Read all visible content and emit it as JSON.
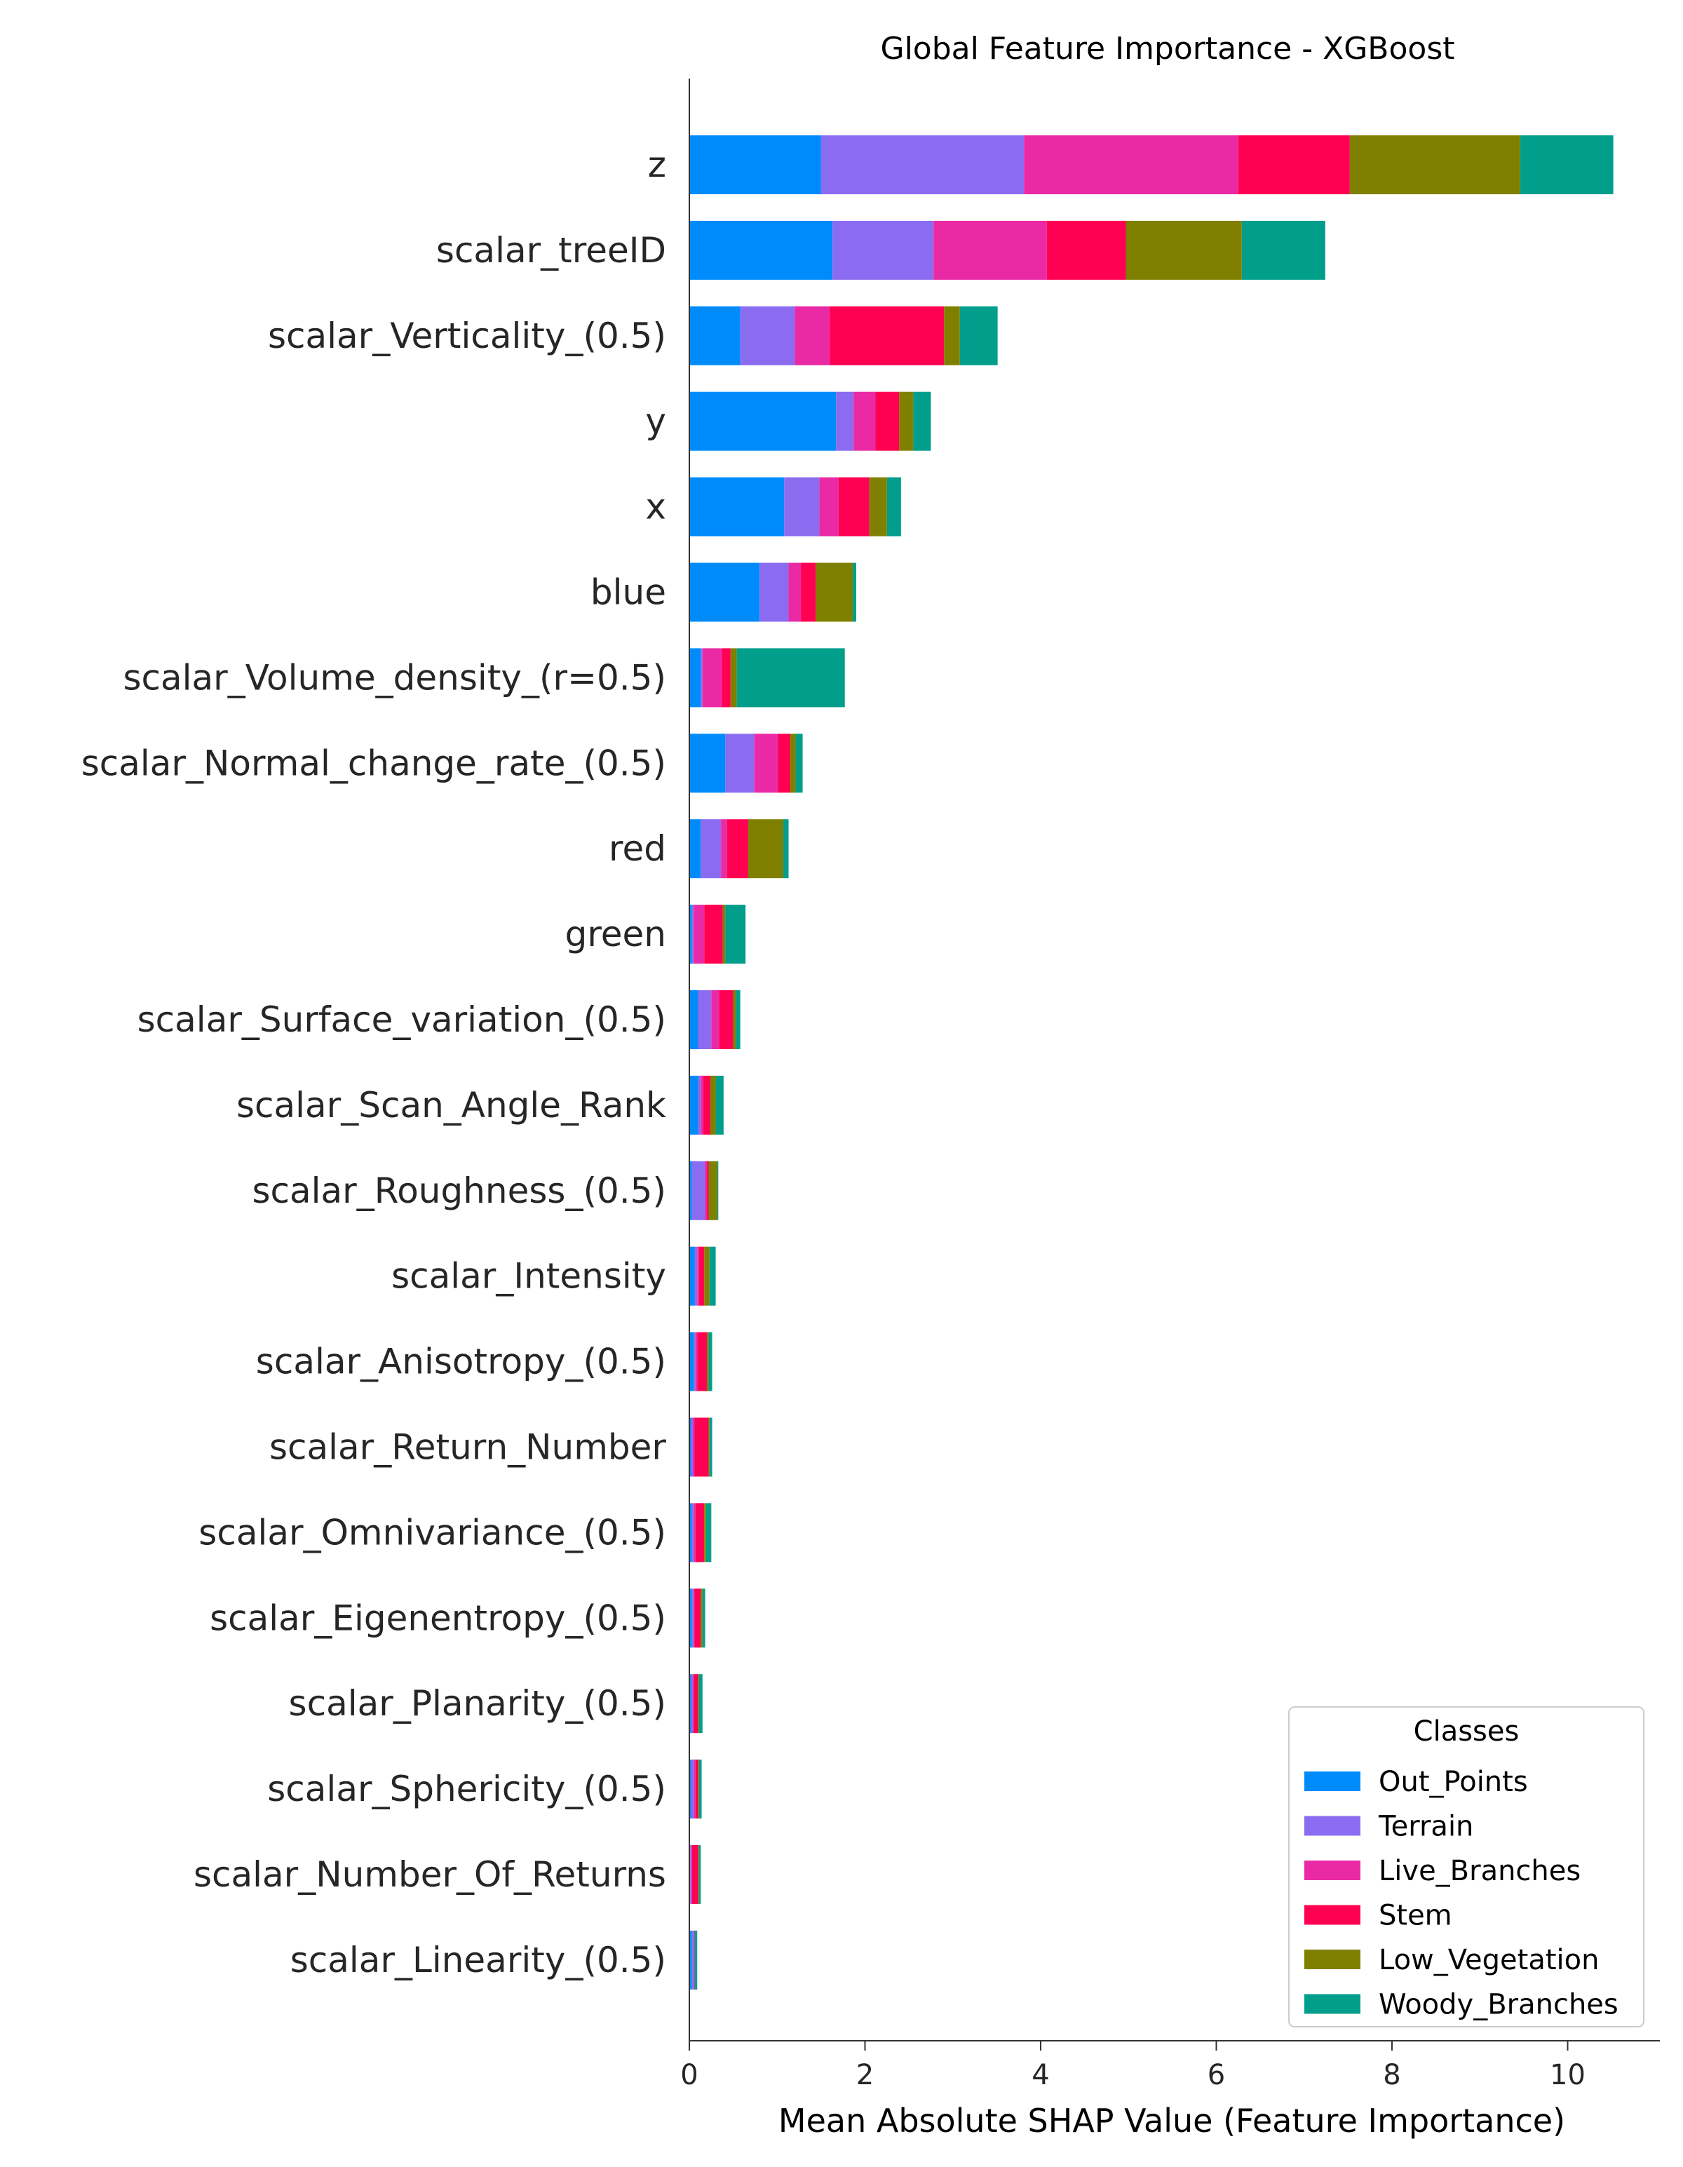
{
  "chart_data": {
    "type": "bar",
    "orientation": "horizontal",
    "stacked": true,
    "title": "Global Feature Importance - XGBoost",
    "xlabel": "Mean Absolute SHAP Value (Feature Importance)",
    "ylabel": "",
    "xlim": [
      0,
      11.05
    ],
    "xticks": [
      0,
      2,
      4,
      6,
      8,
      10
    ],
    "grid": false,
    "legend": {
      "title": "Classes",
      "position": "lower-right"
    },
    "categories": [
      "z",
      "scalar_treeID",
      "scalar_Verticality_(0.5)",
      "y",
      "x",
      "blue",
      "scalar_Volume_density_(r=0.5)",
      "scalar_Normal_change_rate_(0.5)",
      "red",
      "green",
      "scalar_Surface_variation_(0.5)",
      "scalar_Scan_Angle_Rank",
      "scalar_Roughness_(0.5)",
      "scalar_Intensity",
      "scalar_Anisotropy_(0.5)",
      "scalar_Return_Number",
      "scalar_Omnivariance_(0.5)",
      "scalar_Eigenentropy_(0.5)",
      "scalar_Planarity_(0.5)",
      "scalar_Sphericity_(0.5)",
      "scalar_Number_Of_Returns",
      "scalar_Linearity_(0.5)"
    ],
    "series": [
      {
        "name": "Out_Points",
        "color": "#008bfb",
        "values": [
          1.5,
          1.63,
          0.58,
          1.67,
          1.08,
          0.8,
          0.13,
          0.41,
          0.13,
          0.03,
          0.1,
          0.1,
          0.03,
          0.06,
          0.05,
          0.02,
          0.03,
          0.03,
          0.02,
          0.02,
          0.01,
          0.03
        ]
      },
      {
        "name": "Terrain",
        "color": "#8b6cf0",
        "values": [
          2.31,
          1.15,
          0.62,
          0.2,
          0.4,
          0.33,
          0.02,
          0.33,
          0.23,
          0.02,
          0.15,
          0.03,
          0.15,
          0.03,
          0.02,
          0.02,
          0.02,
          0.02,
          0.02,
          0.03,
          0.01,
          0.02
        ]
      },
      {
        "name": "Live_Branches",
        "color": "#ea2aa5",
        "values": [
          2.44,
          1.29,
          0.4,
          0.25,
          0.22,
          0.14,
          0.22,
          0.27,
          0.07,
          0.12,
          0.09,
          0.03,
          0.02,
          0.02,
          0.02,
          0.02,
          0.02,
          0.01,
          0.01,
          0.02,
          0.01,
          0.01
        ]
      },
      {
        "name": "Stem",
        "color": "#ff0052",
        "values": [
          1.27,
          0.9,
          1.3,
          0.27,
          0.35,
          0.17,
          0.1,
          0.14,
          0.24,
          0.21,
          0.16,
          0.08,
          0.02,
          0.06,
          0.11,
          0.16,
          0.1,
          0.07,
          0.05,
          0.03,
          0.07,
          0.0
        ]
      },
      {
        "name": "Low_Vegetation",
        "color": "#808000",
        "values": [
          1.94,
          1.32,
          0.18,
          0.16,
          0.2,
          0.42,
          0.07,
          0.06,
          0.4,
          0.03,
          0.03,
          0.06,
          0.1,
          0.06,
          0.02,
          0.01,
          0.02,
          0.02,
          0.01,
          0.01,
          0.01,
          0.0
        ]
      },
      {
        "name": "Woody_Branches",
        "color": "#009e8b",
        "values": [
          1.06,
          0.95,
          0.43,
          0.2,
          0.16,
          0.04,
          1.23,
          0.08,
          0.06,
          0.23,
          0.05,
          0.09,
          0.01,
          0.07,
          0.04,
          0.03,
          0.06,
          0.03,
          0.04,
          0.03,
          0.02,
          0.03
        ]
      }
    ]
  }
}
